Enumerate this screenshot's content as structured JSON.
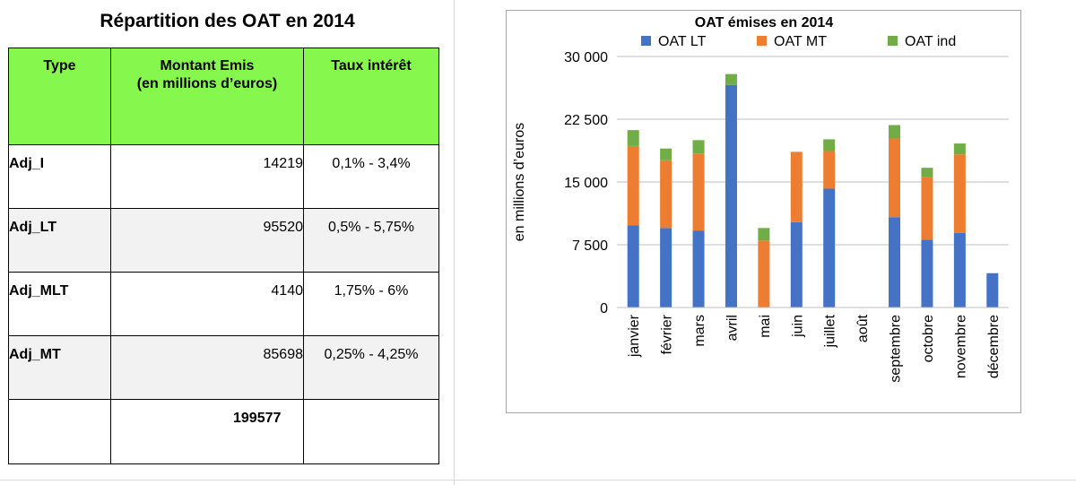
{
  "table": {
    "title": "Répartition des OAT en 2014",
    "headers": [
      "Type",
      "Montant Emis\n(en millions d’euros)",
      "Taux intérêt"
    ],
    "rows": [
      {
        "type": "Adj_I",
        "amount": "14219",
        "rate": "0,1% - 3,4%"
      },
      {
        "type": "Adj_LT",
        "amount": "95520",
        "rate": "0,5% - 5,75%"
      },
      {
        "type": "Adj_MLT",
        "amount": "4140",
        "rate": "1,75% - 6%"
      },
      {
        "type": "Adj_MT",
        "amount": "85698",
        "rate": "0,25% - 4,25%"
      }
    ],
    "total": "199577"
  },
  "chart_data": {
    "type": "bar",
    "stacked": true,
    "title": "OAT émises en 2014",
    "xlabel": "",
    "ylabel": "en millions d’euros",
    "ylim": [
      0,
      30000
    ],
    "yticks": [
      0,
      7500,
      15000,
      22500,
      30000
    ],
    "ytick_labels": [
      "0",
      "7 500",
      "15 000",
      "22 500",
      "30 000"
    ],
    "grid": true,
    "legend_position": "top",
    "categories": [
      "janvier",
      "février",
      "mars",
      "avril",
      "mai",
      "juin",
      "juillet",
      "août",
      "septembre",
      "octobre",
      "novembre",
      "décembre"
    ],
    "series": [
      {
        "name": "OAT LT",
        "color": "#4472c4",
        "values": [
          9800,
          9500,
          9200,
          26600,
          0,
          10200,
          14200,
          0,
          10800,
          8100,
          8900,
          4100
        ]
      },
      {
        "name": "OAT MT",
        "color": "#ed7d31",
        "values": [
          9500,
          8100,
          9200,
          0,
          8000,
          8400,
          4500,
          0,
          9400,
          7500,
          9400,
          0
        ]
      },
      {
        "name": "OAT ind",
        "color": "#70ad47",
        "values": [
          1900,
          1400,
          1600,
          1300,
          1500,
          0,
          1400,
          0,
          1600,
          1100,
          1300,
          0
        ]
      }
    ]
  }
}
